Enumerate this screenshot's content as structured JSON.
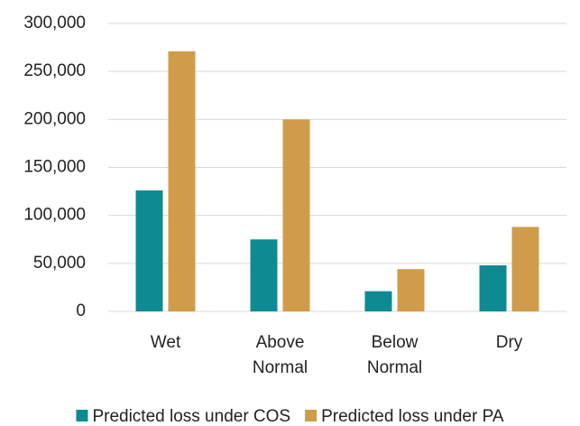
{
  "chart_data": {
    "type": "bar",
    "categories": [
      "Wet",
      "Above Normal",
      "Below Normal",
      "Dry"
    ],
    "series": [
      {
        "name": "Predicted loss under COS",
        "color": "#0e8a92",
        "values": [
          126000,
          75000,
          21000,
          48000
        ]
      },
      {
        "name": "Predicted loss under PA",
        "color": "#d09c4a",
        "values": [
          271000,
          200000,
          44000,
          88000
        ]
      }
    ],
    "ylim": [
      0,
      300000
    ],
    "yticks": [
      0,
      {
        "value": 50000,
        "label": "50,000"
      },
      {
        "value": 100000,
        "label": "100,000"
      },
      {
        "value": 150000,
        "label": "150,000"
      },
      {
        "value": 200000,
        "label": "200,000"
      },
      {
        "value": 250000,
        "label": "250,000"
      },
      {
        "value": 300000,
        "label": "300,000"
      }
    ],
    "grid": true,
    "legend": "bottom"
  }
}
